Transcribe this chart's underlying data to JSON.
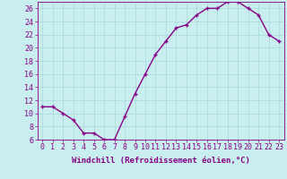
{
  "x": [
    0,
    1,
    2,
    3,
    4,
    5,
    6,
    7,
    8,
    9,
    10,
    11,
    12,
    13,
    14,
    15,
    16,
    17,
    18,
    19,
    20,
    21,
    22,
    23
  ],
  "y": [
    11,
    11,
    10,
    9,
    7,
    7,
    6,
    6,
    9.5,
    13,
    16,
    19,
    21,
    23,
    23.5,
    25,
    26,
    26,
    27,
    27,
    26,
    25,
    22,
    21
  ],
  "line_color": "#880088",
  "marker": "+",
  "marker_color": "#880088",
  "background_color": "#c8eef0",
  "grid_color": "#a8d8da",
  "xlabel": "Windchill (Refroidissement éolien,°C)",
  "xlabel_color": "#880088",
  "ylim": [
    6,
    27
  ],
  "yticks": [
    6,
    8,
    10,
    12,
    14,
    16,
    18,
    20,
    22,
    24,
    26
  ],
  "xticks": [
    0,
    1,
    2,
    3,
    4,
    5,
    6,
    7,
    8,
    9,
    10,
    11,
    12,
    13,
    14,
    15,
    16,
    17,
    18,
    19,
    20,
    21,
    22,
    23
  ],
  "tick_color": "#880088",
  "spine_color": "#880088",
  "tick_fontsize": 6,
  "xlabel_fontsize": 6.5,
  "marker_size": 3,
  "line_width": 1.0
}
